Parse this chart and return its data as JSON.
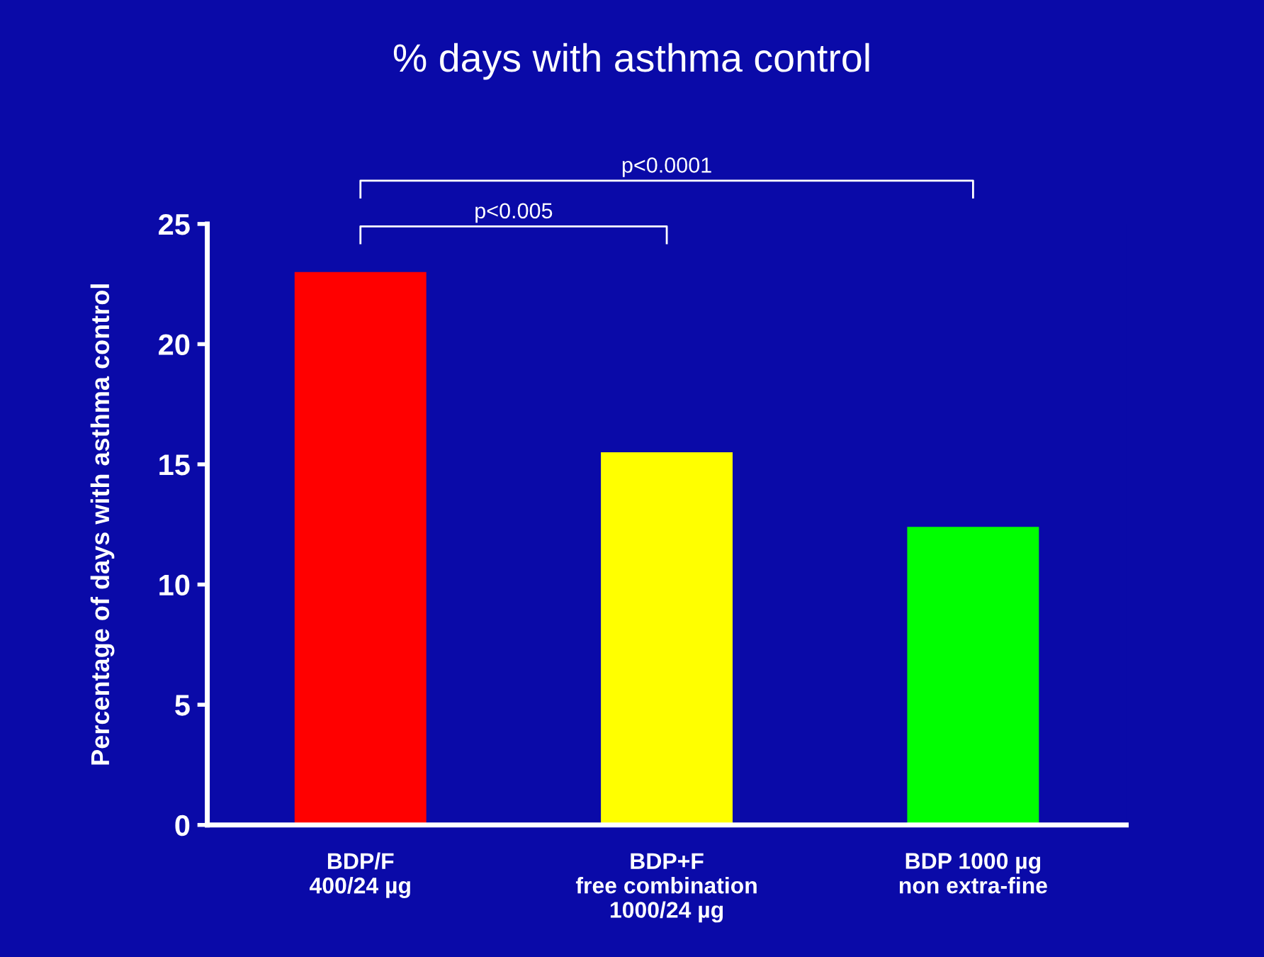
{
  "chart_data": {
    "type": "bar",
    "title": "% days with asthma control",
    "ylabel": "Percentage of days with asthma control",
    "categories": [
      "BDP/F\n400/24 µg",
      "BDP+F\nfree combination\n1000/24 µg",
      "BDP 1000 µg\nnon extra-fine"
    ],
    "values": [
      23,
      15.5,
      12.4
    ],
    "colors": [
      "#ff0000",
      "#ffff00",
      "#00ff00"
    ],
    "ylim": [
      0,
      25
    ],
    "yticks": [
      0,
      5,
      10,
      15,
      20,
      25
    ],
    "grid": false,
    "legend": false,
    "annotations": [
      "p<0.005",
      "p<0.0001"
    ]
  }
}
